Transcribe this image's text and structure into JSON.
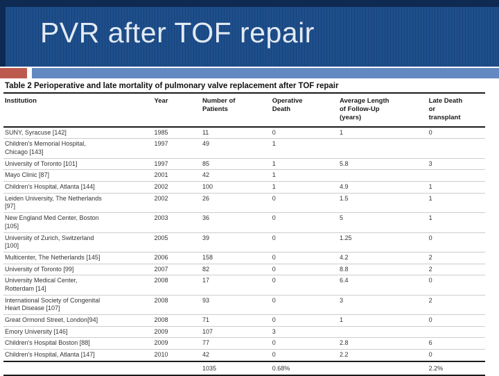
{
  "slide": {
    "title": "PVR after TOF repair"
  },
  "theme": {
    "banner_blue": "#1e4f8d",
    "banner_edge_navy": "#0e2a52",
    "accent_red": "#bd5a4e",
    "accent_light_blue": "#6289c1",
    "title_text_color": "#e2eaf3"
  },
  "table": {
    "caption": "Table 2 Perioperative and late mortality of pulmonary valve replacement after TOF repair",
    "columns": [
      "Institution",
      "Year",
      "Number of\nPatients",
      "Operative\nDeath",
      "Average Length\nof Follow-Up\n(years)",
      "Late Death\nor\ntransplant"
    ],
    "rows": [
      [
        "SUNY, Syracuse [142]",
        "1985",
        "11",
        "0",
        "1",
        "0"
      ],
      [
        "Children's Memorial Hospital,\nChicago [143]",
        "1997",
        "49",
        "1",
        "",
        ""
      ],
      [
        "University of Toronto [101]",
        "1997",
        "85",
        "1",
        "5.8",
        "3"
      ],
      [
        "Mayo Clinic [87]",
        "2001",
        "42",
        "1",
        "",
        ""
      ],
      [
        "Children's Hospital, Atlanta [144]",
        "2002",
        "100",
        "1",
        "4.9",
        "1"
      ],
      [
        "Leiden University, The Netherlands\n[97]",
        "2002",
        "26",
        "0",
        "1.5",
        "1"
      ],
      [
        "New England Med Center, Boston\n[105]",
        "2003",
        "36",
        "0",
        "5",
        "1"
      ],
      [
        "University of Zurich, Switzerland\n[100]",
        "2005",
        "39",
        "0",
        "1.25",
        "0"
      ],
      [
        "Multicenter, The Netherlands [145]",
        "2006",
        "158",
        "0",
        "4.2",
        "2"
      ],
      [
        "University of Toronto [99]",
        "2007",
        "82",
        "0",
        "8.8",
        "2"
      ],
      [
        "University Medical Center,\nRotterdam [14]",
        "2008",
        "17",
        "0",
        "6.4",
        "0"
      ],
      [
        "International Society of Congenital\nHeart Disease [107]",
        "2008",
        "93",
        "0",
        "3",
        "2"
      ],
      [
        "Great Ormond Street, London[94]",
        "2008",
        "71",
        "0",
        "1",
        "0"
      ],
      [
        "Emory University [146]",
        "2009",
        "107",
        "3",
        "",
        ""
      ],
      [
        "Children's Hospital Boston [88]",
        "2009",
        "77",
        "0",
        "2.8",
        "6"
      ],
      [
        "Children's Hospital, Atlanta [147]",
        "2010",
        "42",
        "0",
        "2.2",
        "0"
      ]
    ],
    "total_row": [
      "",
      "",
      "1035",
      "0.68%",
      "",
      "2.2%"
    ]
  }
}
